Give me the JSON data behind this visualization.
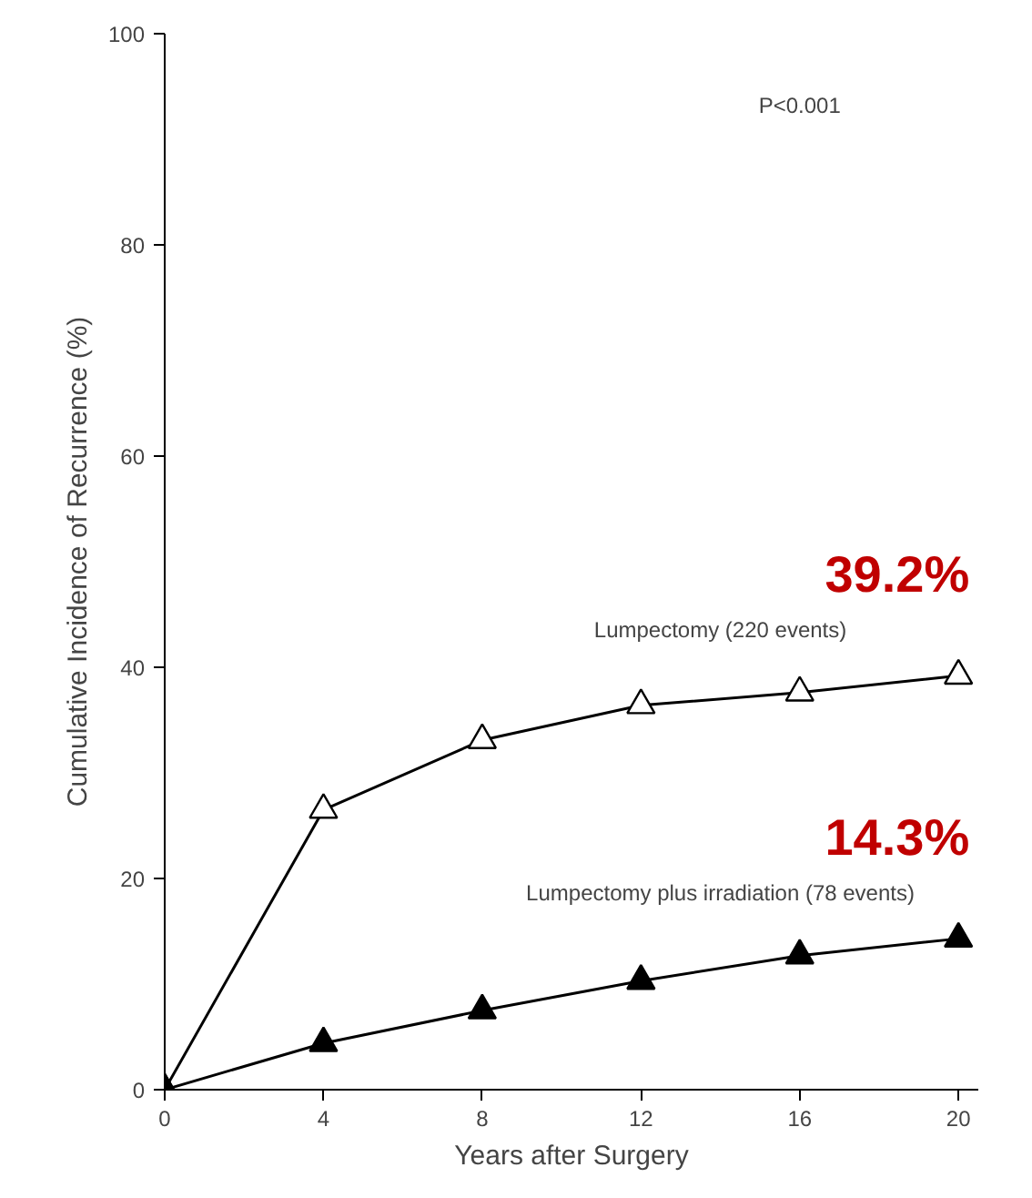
{
  "chart_data": {
    "type": "line",
    "xlabel": "Years after Surgery",
    "ylabel": "Cumulative Incidence of Recurrence (%)",
    "x": [
      0,
      4,
      8,
      12,
      16,
      20
    ],
    "series": [
      {
        "name": "Lumpectomy (220 events)",
        "color": "#ffffff",
        "values": [
          0,
          26.5,
          33.1,
          36.4,
          37.6,
          39.2
        ]
      },
      {
        "name": "Lumpectomy plus irradiation (78 events)",
        "color": "#000000",
        "values": [
          0,
          4.4,
          7.5,
          10.3,
          12.7,
          14.3
        ]
      }
    ],
    "xlim": [
      0,
      20.5
    ],
    "ylim": [
      0,
      100
    ],
    "xticks": [
      0,
      4,
      8,
      12,
      16,
      20
    ],
    "yticks": [
      0,
      20,
      40,
      60,
      80,
      100
    ],
    "marker": "triangle",
    "grid": false,
    "annotations": [
      "P<0.001",
      {
        "text": "39.2%",
        "x": 20,
        "y": 39.2
      },
      {
        "text": "14.3%",
        "x": 20,
        "y": 14.3
      }
    ]
  }
}
